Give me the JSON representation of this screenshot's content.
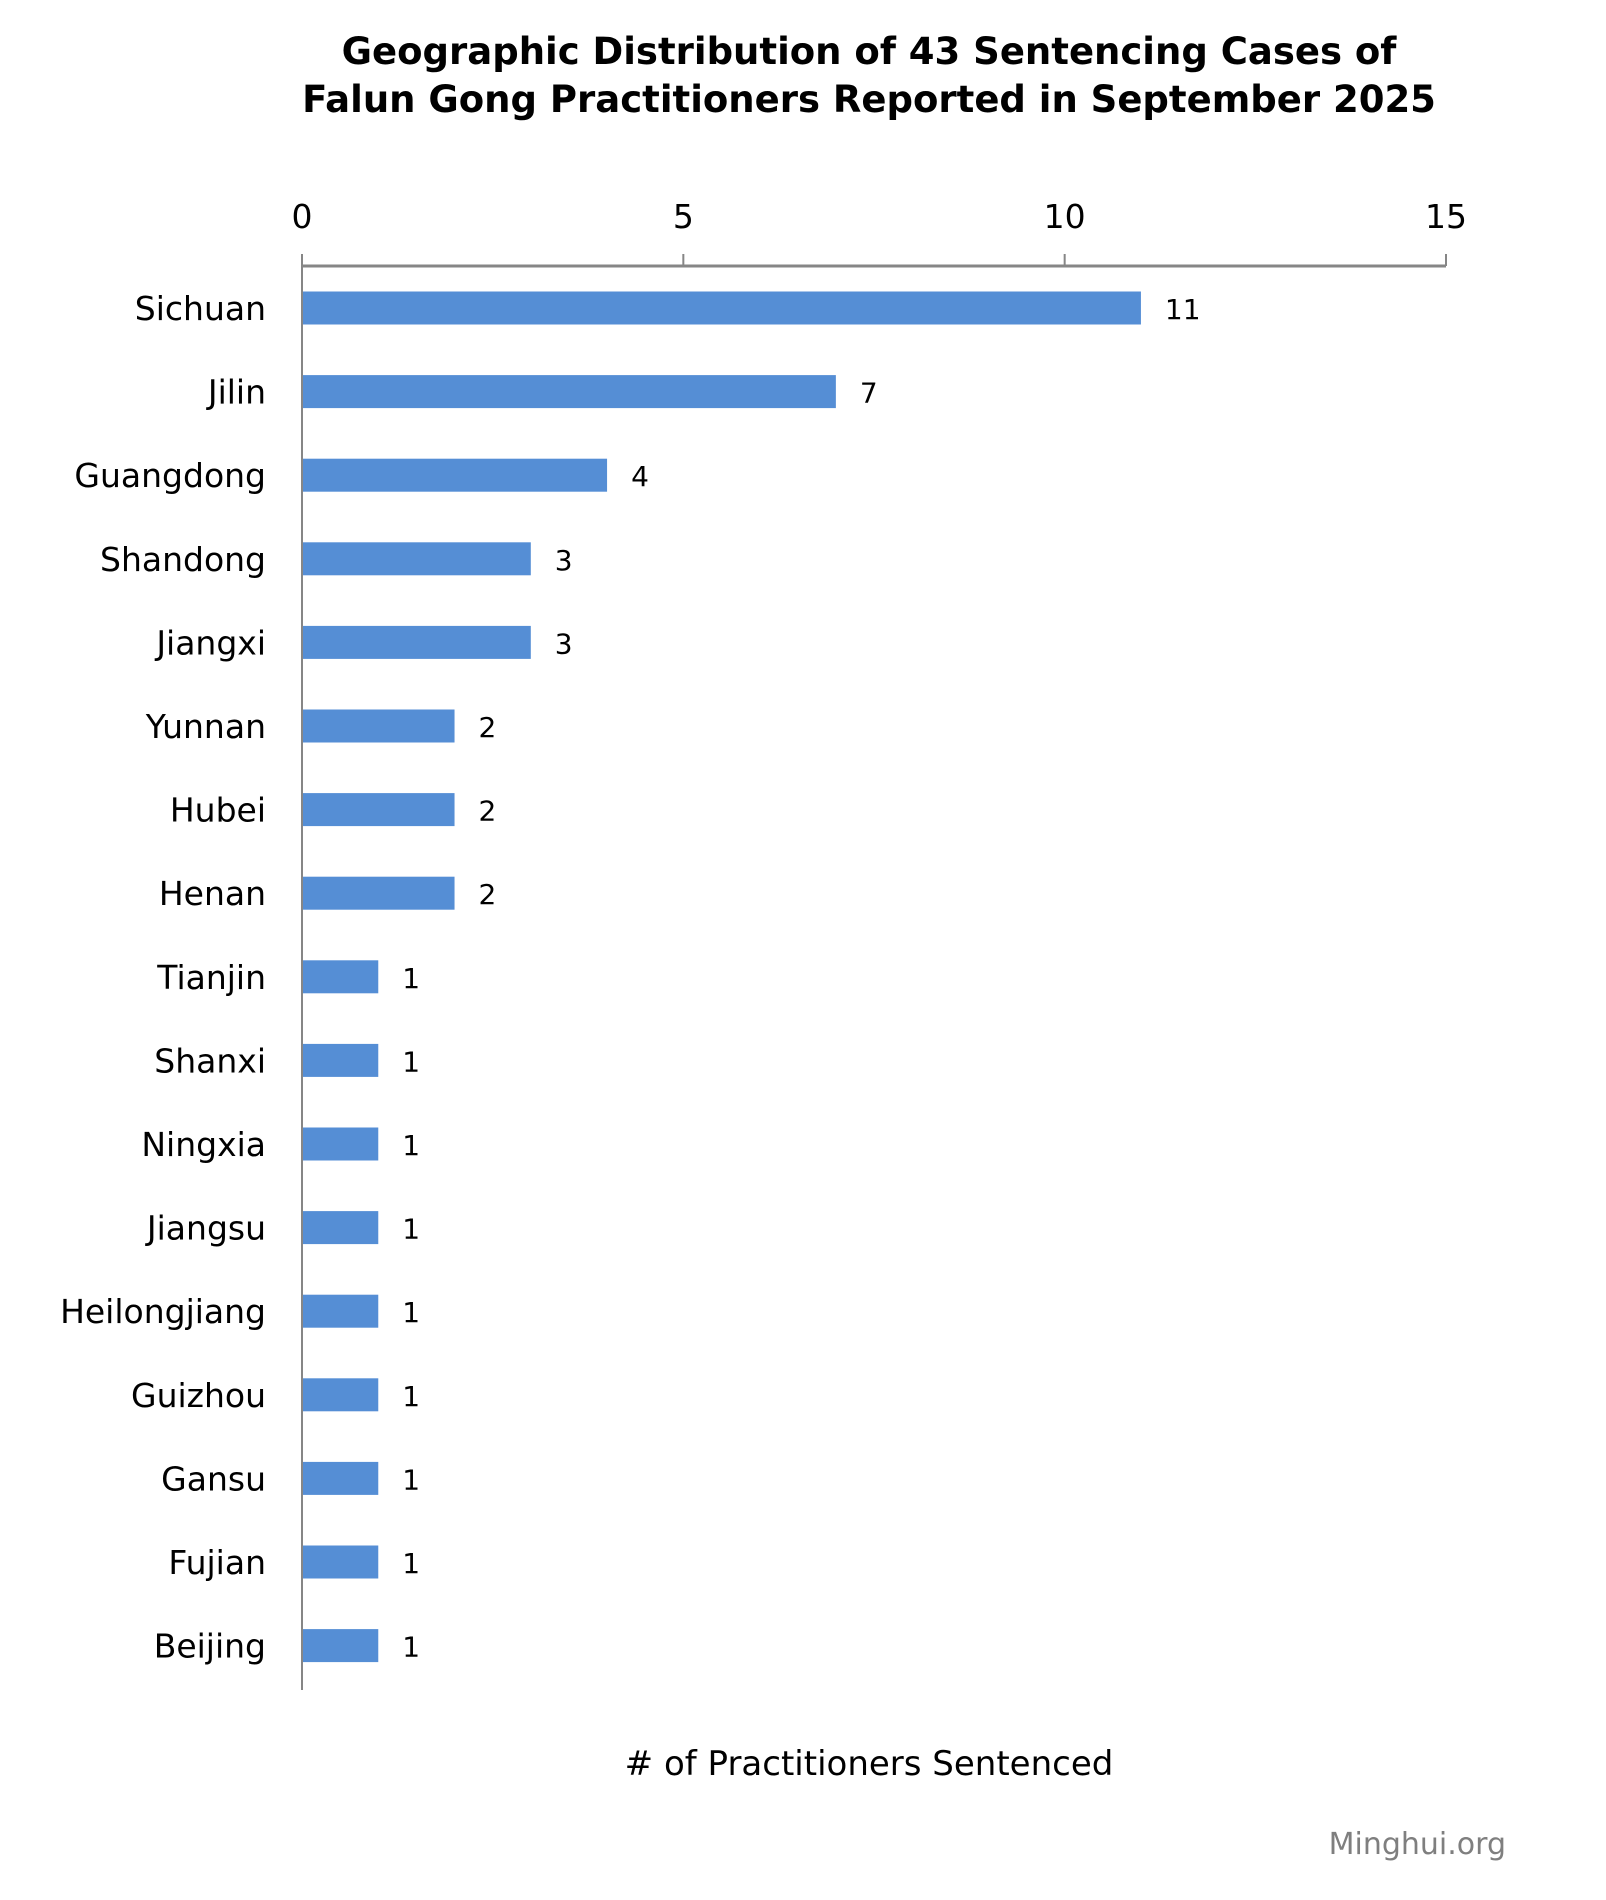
{
  "chart_data": {
    "type": "bar",
    "orientation": "horizontal",
    "title": "Geographic Distribution of 43 Sentencing Cases of Falun Gong Practitioners Reported in September 2025",
    "title_lines": [
      "Geographic Distribution of 43 Sentencing Cases of",
      "Falun Gong Practitioners Reported in September 2025"
    ],
    "xlabel": "# of Practitioners Sentenced",
    "ylabel": "",
    "xlim": [
      0,
      15
    ],
    "xticks": [
      0,
      5,
      10,
      15
    ],
    "x_axis_position": "top",
    "grid": false,
    "categories": [
      "Sichuan",
      "Jilin",
      "Guangdong",
      "Shandong",
      "Jiangxi",
      "Yunnan",
      "Hubei",
      "Henan",
      "Tianjin",
      "Shanxi",
      "Ningxia",
      "Jiangsu",
      "Heilongjiang",
      "Guizhou",
      "Gansu",
      "Fujian",
      "Beijing"
    ],
    "values": [
      11,
      7,
      4,
      3,
      3,
      2,
      2,
      2,
      1,
      1,
      1,
      1,
      1,
      1,
      1,
      1,
      1
    ],
    "bar_color": "#558ed5",
    "axis_color": "#868686",
    "data_labels": true
  },
  "credit": "Minghui.org"
}
